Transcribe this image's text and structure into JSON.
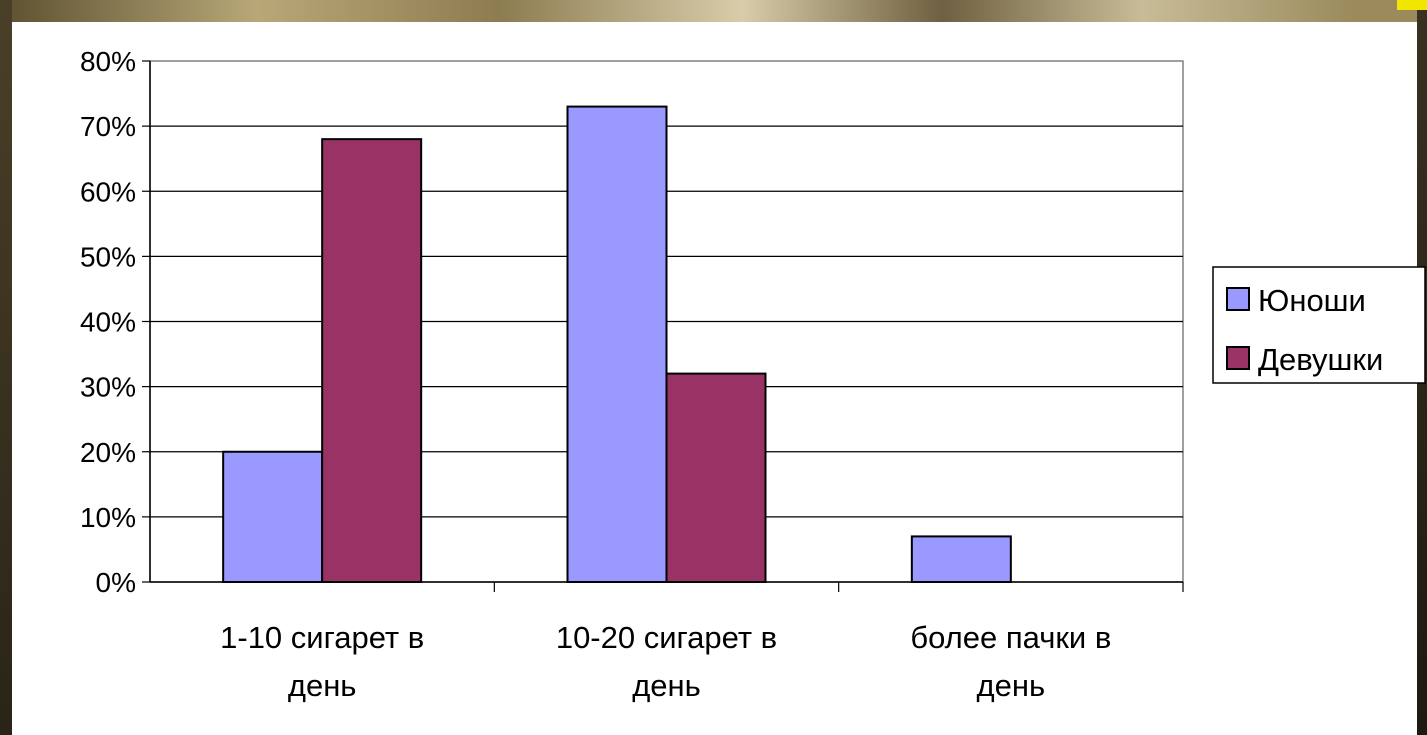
{
  "chart_data": {
    "type": "bar",
    "title": "",
    "xlabel": "",
    "ylabel": "",
    "categories": [
      [
        "1-10 сигарет в",
        "день"
      ],
      [
        "10-20 сигарет в",
        "день"
      ],
      [
        "более пачки в",
        "день"
      ]
    ],
    "series": [
      {
        "name": "Юноши",
        "values": [
          20,
          73,
          7
        ],
        "color": "#9999ff"
      },
      {
        "name": "Девушки",
        "values": [
          68,
          32,
          0
        ],
        "color": "#993366"
      }
    ],
    "ylim": [
      0,
      80
    ],
    "yticks": [
      "0%",
      "10%",
      "20%",
      "30%",
      "40%",
      "50%",
      "60%",
      "70%",
      "80%"
    ],
    "grid": true,
    "legend_position": "right"
  }
}
